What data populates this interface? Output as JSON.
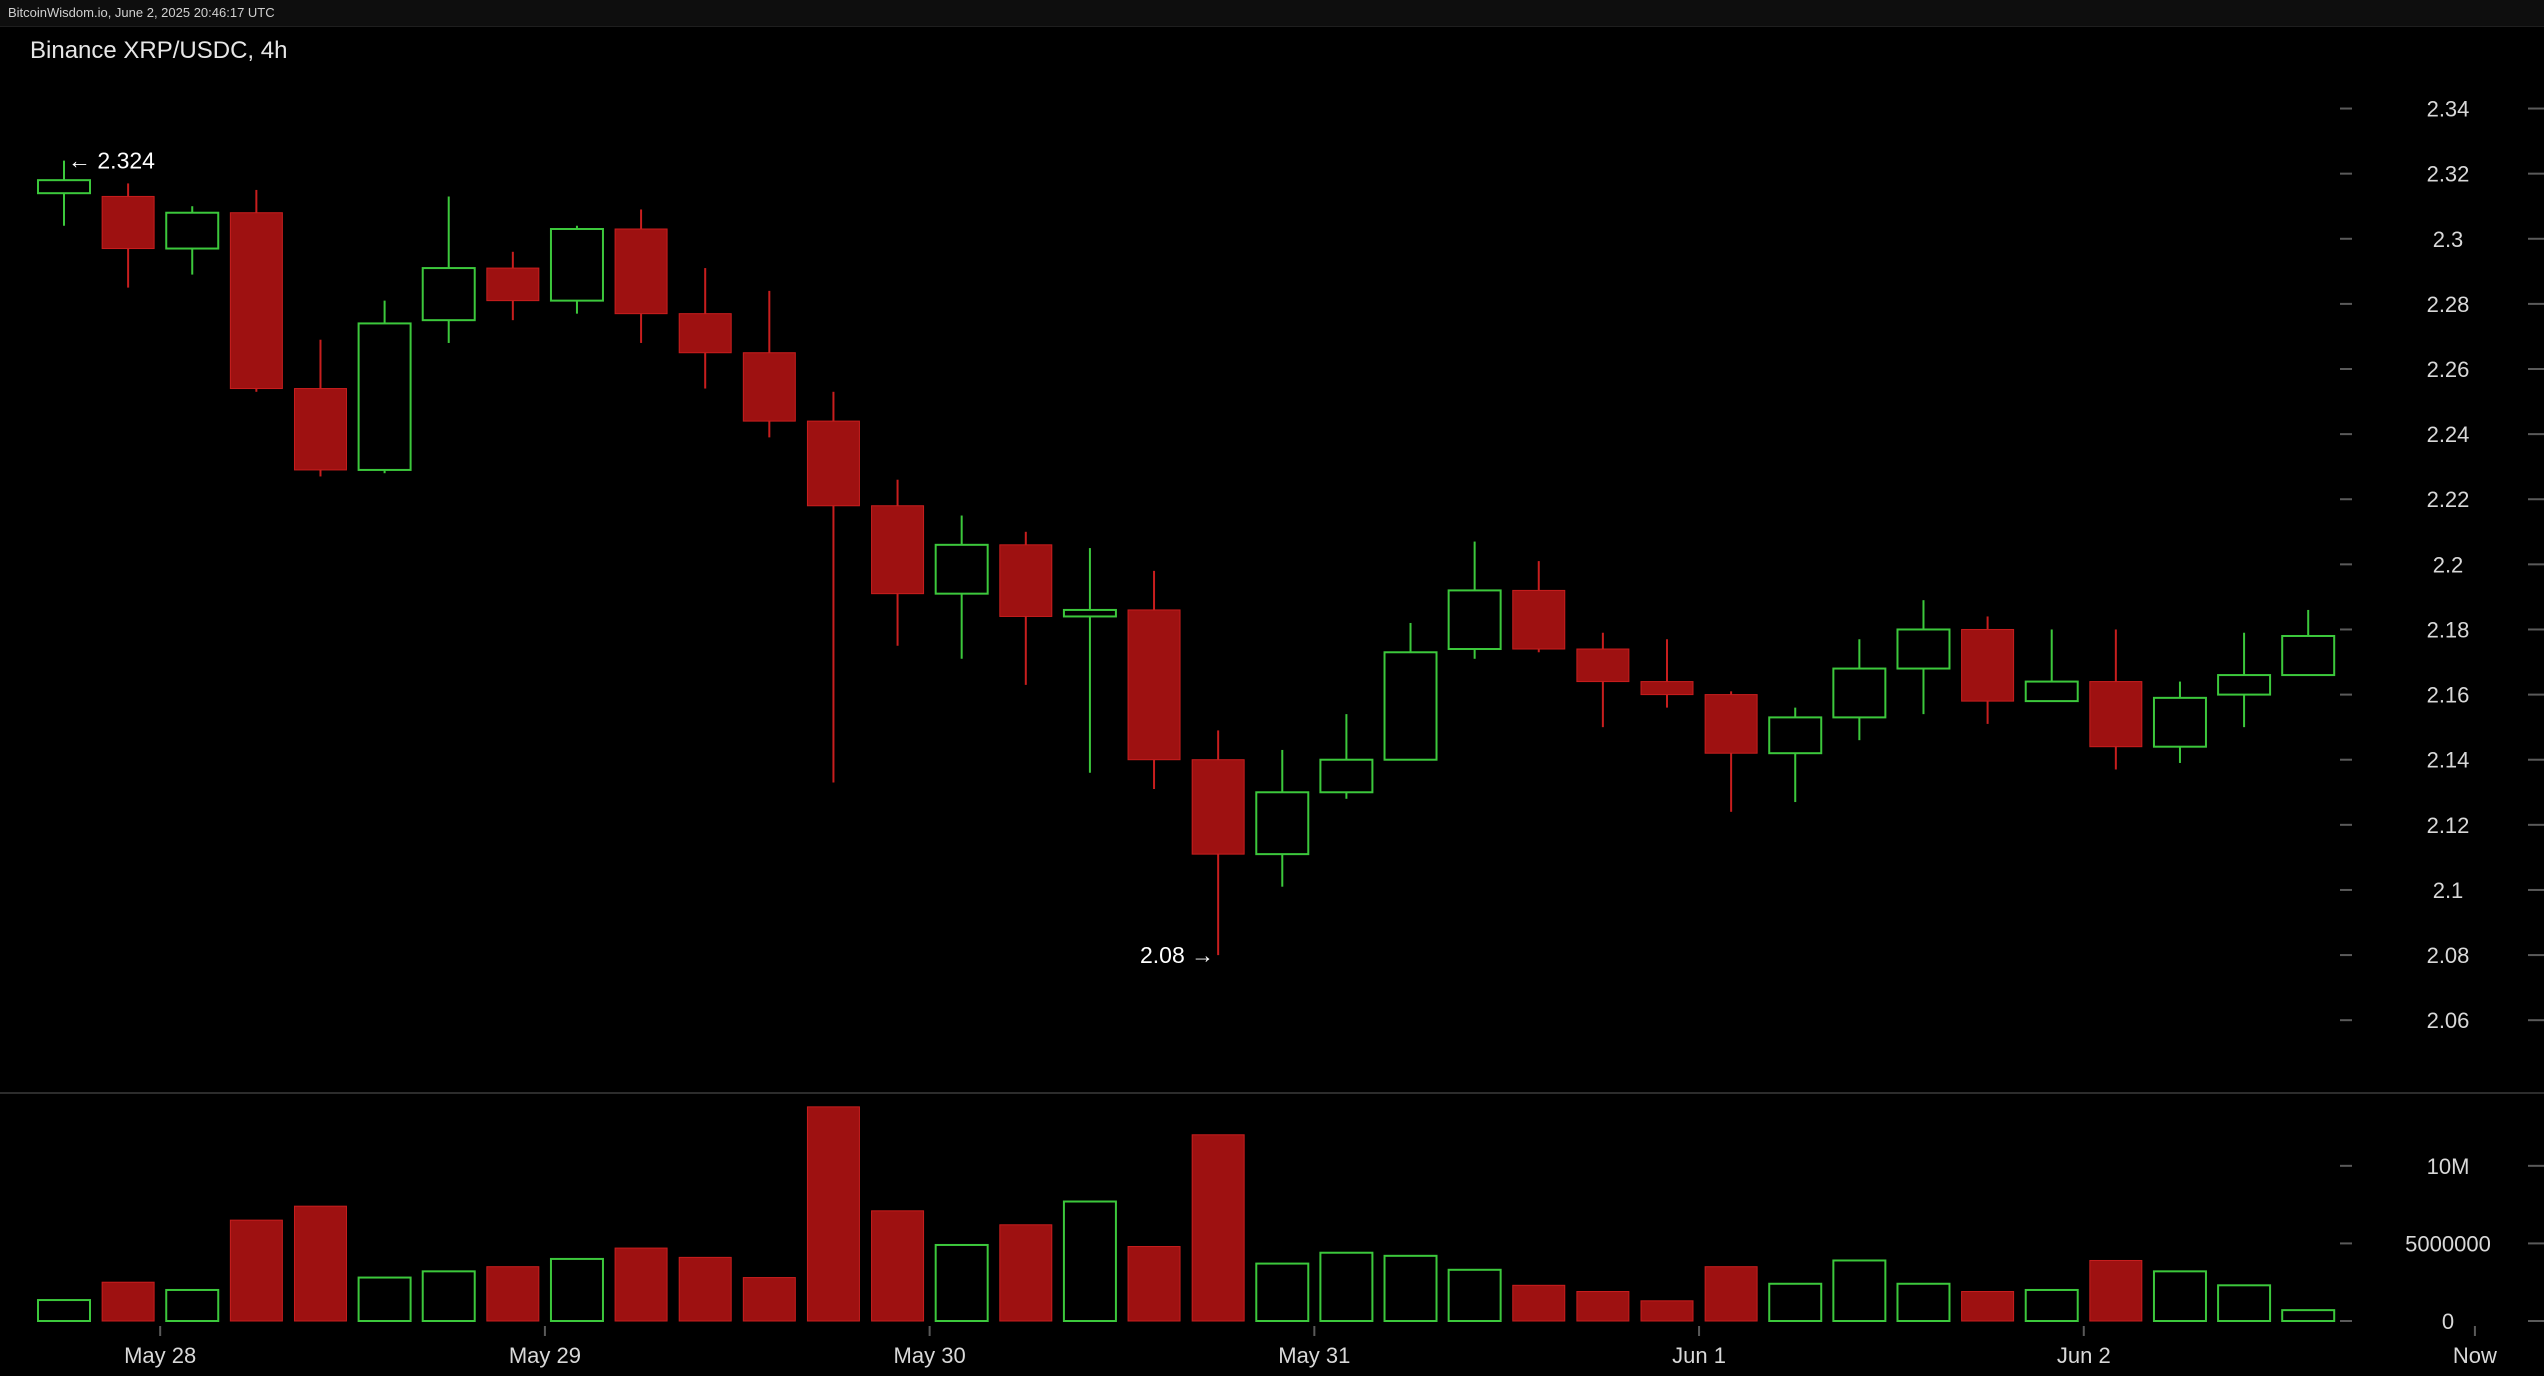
{
  "window": {
    "watermark": "BitcoinWisdom.io, June 2, 2025 20:46:17 UTC",
    "title": "Binance XRP/USDC, 4h"
  },
  "colors": {
    "background": "#000000",
    "up": "#3cc83c",
    "down": "#9e1111",
    "down_wick": "#c81e1e",
    "axis_text": "#d8d8d8",
    "tick": "#5a5a5a",
    "divider": "#3a3a3a"
  },
  "chart_data": {
    "type": "candlestick",
    "title": "Binance XRP/USDC, 4h",
    "price_axis": {
      "ticks": [
        2.34,
        2.32,
        2.3,
        2.28,
        2.26,
        2.24,
        2.22,
        2.2,
        2.18,
        2.16,
        2.14,
        2.12,
        2.1,
        2.08,
        2.06
      ],
      "tick_labels": [
        "2.34",
        "2.32",
        "2.3",
        "2.28",
        "2.26",
        "2.24",
        "2.22",
        "2.2",
        "2.18",
        "2.16",
        "2.14",
        "2.12",
        "2.1",
        "2.08",
        "2.06"
      ],
      "range": [
        2.049,
        2.346
      ]
    },
    "volume_axis": {
      "ticks": [
        10000000,
        5000000,
        0
      ],
      "tick_labels": [
        "10M",
        "5000000",
        "0"
      ],
      "range": [
        0,
        14500000
      ]
    },
    "x_labels": [
      {
        "label": "May 28",
        "index": 1.5
      },
      {
        "label": "May 29",
        "index": 7.5
      },
      {
        "label": "May 30",
        "index": 13.5
      },
      {
        "label": "May 31",
        "index": 19.5
      },
      {
        "label": "Jun 1",
        "index": 25.5
      },
      {
        "label": "Jun 2",
        "index": 31.5
      },
      {
        "label": "Now",
        "index": 37.6
      }
    ],
    "candles": [
      {
        "o": 2.314,
        "h": 2.324,
        "l": 2.304,
        "c": 2.318,
        "v": 1350000
      },
      {
        "o": 2.313,
        "h": 2.317,
        "l": 2.285,
        "c": 2.297,
        "v": 2500000
      },
      {
        "o": 2.297,
        "h": 2.31,
        "l": 2.289,
        "c": 2.308,
        "v": 2000000
      },
      {
        "o": 2.308,
        "h": 2.315,
        "l": 2.253,
        "c": 2.254,
        "v": 6500000
      },
      {
        "o": 2.254,
        "h": 2.269,
        "l": 2.227,
        "c": 2.229,
        "v": 7400000
      },
      {
        "o": 2.229,
        "h": 2.281,
        "l": 2.228,
        "c": 2.274,
        "v": 2800000
      },
      {
        "o": 2.275,
        "h": 2.313,
        "l": 2.268,
        "c": 2.291,
        "v": 3200000
      },
      {
        "o": 2.291,
        "h": 2.296,
        "l": 2.275,
        "c": 2.281,
        "v": 3500000
      },
      {
        "o": 2.281,
        "h": 2.304,
        "l": 2.277,
        "c": 2.303,
        "v": 4000000
      },
      {
        "o": 2.303,
        "h": 2.309,
        "l": 2.268,
        "c": 2.277,
        "v": 4700000
      },
      {
        "o": 2.277,
        "h": 2.291,
        "l": 2.254,
        "c": 2.265,
        "v": 4100000
      },
      {
        "o": 2.265,
        "h": 2.284,
        "l": 2.239,
        "c": 2.244,
        "v": 2800000
      },
      {
        "o": 2.244,
        "h": 2.253,
        "l": 2.133,
        "c": 2.218,
        "v": 13800000
      },
      {
        "o": 2.218,
        "h": 2.226,
        "l": 2.175,
        "c": 2.191,
        "v": 7100000
      },
      {
        "o": 2.191,
        "h": 2.215,
        "l": 2.171,
        "c": 2.206,
        "v": 4900000
      },
      {
        "o": 2.206,
        "h": 2.21,
        "l": 2.163,
        "c": 2.184,
        "v": 6200000
      },
      {
        "o": 2.184,
        "h": 2.205,
        "l": 2.136,
        "c": 2.186,
        "v": 7700000
      },
      {
        "o": 2.186,
        "h": 2.198,
        "l": 2.131,
        "c": 2.14,
        "v": 4800000
      },
      {
        "o": 2.14,
        "h": 2.149,
        "l": 2.08,
        "c": 2.111,
        "v": 12000000
      },
      {
        "o": 2.111,
        "h": 2.143,
        "l": 2.101,
        "c": 2.13,
        "v": 3700000
      },
      {
        "o": 2.13,
        "h": 2.154,
        "l": 2.128,
        "c": 2.14,
        "v": 4400000
      },
      {
        "o": 2.14,
        "h": 2.182,
        "l": 2.14,
        "c": 2.173,
        "v": 4200000
      },
      {
        "o": 2.174,
        "h": 2.207,
        "l": 2.171,
        "c": 2.192,
        "v": 3300000
      },
      {
        "o": 2.192,
        "h": 2.201,
        "l": 2.173,
        "c": 2.174,
        "v": 2300000
      },
      {
        "o": 2.174,
        "h": 2.179,
        "l": 2.15,
        "c": 2.164,
        "v": 1900000
      },
      {
        "o": 2.164,
        "h": 2.177,
        "l": 2.156,
        "c": 2.16,
        "v": 1300000
      },
      {
        "o": 2.16,
        "h": 2.161,
        "l": 2.124,
        "c": 2.142,
        "v": 3500000
      },
      {
        "o": 2.142,
        "h": 2.156,
        "l": 2.127,
        "c": 2.153,
        "v": 2400000
      },
      {
        "o": 2.153,
        "h": 2.177,
        "l": 2.146,
        "c": 2.168,
        "v": 3900000
      },
      {
        "o": 2.168,
        "h": 2.189,
        "l": 2.154,
        "c": 2.18,
        "v": 2400000
      },
      {
        "o": 2.18,
        "h": 2.184,
        "l": 2.151,
        "c": 2.158,
        "v": 1900000
      },
      {
        "o": 2.158,
        "h": 2.18,
        "l": 2.158,
        "c": 2.164,
        "v": 2000000
      },
      {
        "o": 2.164,
        "h": 2.18,
        "l": 2.137,
        "c": 2.144,
        "v": 3900000
      },
      {
        "o": 2.144,
        "h": 2.164,
        "l": 2.139,
        "c": 2.159,
        "v": 3200000
      },
      {
        "o": 2.16,
        "h": 2.179,
        "l": 2.15,
        "c": 2.166,
        "v": 2300000
      },
      {
        "o": 2.166,
        "h": 2.186,
        "l": 2.166,
        "c": 2.178,
        "v": 700000
      }
    ],
    "annotations": [
      {
        "label": "← 2.324",
        "index": 0,
        "price": 2.324,
        "side": "right"
      },
      {
        "label": "2.08 →",
        "index": 18,
        "price": 2.08,
        "side": "left"
      }
    ],
    "grid": false
  }
}
